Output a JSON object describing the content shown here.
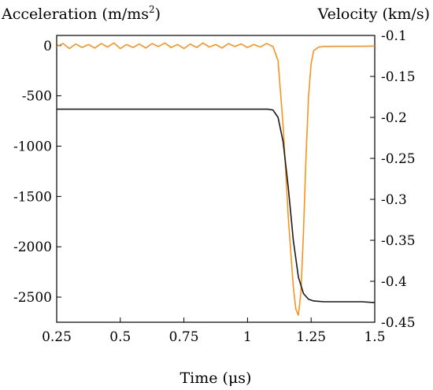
{
  "chart_data": {
    "type": "line",
    "xlabel": "Time (μs)",
    "ylabel_left_base": "Acceleration (m/ms",
    "ylabel_left_sup": "2",
    "ylabel_left_close": ")",
    "ylabel_right": "Velocity (km/s)",
    "xlim": [
      0.25,
      1.5
    ],
    "ylim_left": [
      -2750,
      100
    ],
    "ylim_right": [
      -0.45,
      -0.1
    ],
    "x_ticks": [
      0.25,
      0.5,
      0.75,
      1,
      1.25,
      1.5
    ],
    "x_tick_labels": [
      "0.25",
      "0.5",
      "0.75",
      "1",
      "1.25",
      "1.5"
    ],
    "y_left_ticks": [
      0,
      -500,
      -1000,
      -1500,
      -2000,
      -2500
    ],
    "y_left_tick_labels": [
      "0",
      "-500",
      "-1000",
      "-1500",
      "-2000",
      "-2500"
    ],
    "y_right_ticks": [
      -0.1,
      -0.15,
      -0.2,
      -0.25,
      -0.3,
      -0.35,
      -0.4,
      -0.45
    ],
    "y_right_tick_labels": [
      "-0.1",
      "-0.15",
      "-0.2",
      "-0.25",
      "-0.3",
      "-0.35",
      "-0.4",
      "-0.45"
    ],
    "grid": false,
    "series": [
      {
        "color": "#f7931e",
        "axis": "left",
        "x": [
          0.25,
          0.275,
          0.3,
          0.325,
          0.35,
          0.375,
          0.4,
          0.425,
          0.45,
          0.475,
          0.5,
          0.525,
          0.55,
          0.575,
          0.6,
          0.625,
          0.65,
          0.675,
          0.7,
          0.725,
          0.75,
          0.775,
          0.8,
          0.825,
          0.85,
          0.875,
          0.9,
          0.925,
          0.95,
          0.975,
          1.0,
          1.025,
          1.05,
          1.075,
          1.1,
          1.12,
          1.14,
          1.16,
          1.18,
          1.19,
          1.2,
          1.21,
          1.22,
          1.23,
          1.24,
          1.25,
          1.26,
          1.28,
          1.3,
          1.35,
          1.4,
          1.45,
          1.5
        ],
        "y": [
          -10,
          20,
          -30,
          15,
          -20,
          10,
          -25,
          20,
          -15,
          25,
          -30,
          10,
          -20,
          15,
          -25,
          20,
          -10,
          25,
          -20,
          10,
          -30,
          15,
          -20,
          25,
          -15,
          10,
          -25,
          20,
          -10,
          15,
          -20,
          10,
          -15,
          20,
          -10,
          -150,
          -800,
          -1700,
          -2400,
          -2620,
          -2680,
          -2450,
          -1850,
          -1100,
          -500,
          -180,
          -50,
          -15,
          -10,
          -8,
          -8,
          -7,
          -5
        ]
      },
      {
        "color": "#1a1a1a",
        "axis": "right",
        "x": [
          0.25,
          0.3,
          0.4,
          0.5,
          0.6,
          0.7,
          0.8,
          0.9,
          1.0,
          1.05,
          1.08,
          1.1,
          1.12,
          1.14,
          1.16,
          1.18,
          1.2,
          1.22,
          1.24,
          1.26,
          1.3,
          1.35,
          1.4,
          1.45,
          1.5
        ],
        "y": [
          -0.19,
          -0.19,
          -0.19,
          -0.19,
          -0.19,
          -0.19,
          -0.19,
          -0.19,
          -0.19,
          -0.19,
          -0.19,
          -0.191,
          -0.2,
          -0.23,
          -0.285,
          -0.35,
          -0.395,
          -0.415,
          -0.422,
          -0.424,
          -0.425,
          -0.425,
          -0.425,
          -0.425,
          -0.426
        ]
      }
    ]
  }
}
